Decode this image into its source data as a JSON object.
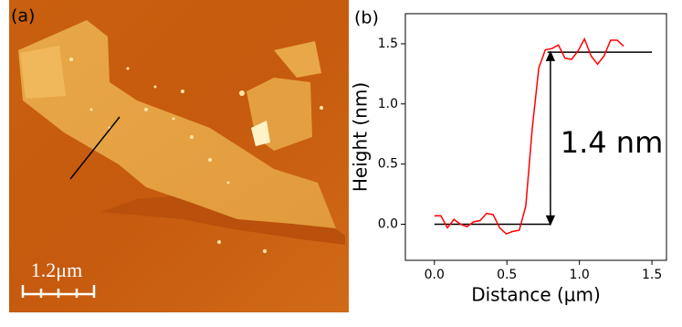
{
  "panel_a": {
    "label": "(a)",
    "scale_bar": "1.2μm"
  },
  "chart_data": {
    "type": "line",
    "label": "(b)",
    "x_label": "Distance (μm)",
    "y_label": "Height (nm)",
    "annotation": "1.4 nm",
    "x": [
      0,
      0.045,
      0.09,
      0.135,
      0.18,
      0.225,
      0.27,
      0.315,
      0.36,
      0.405,
      0.45,
      0.495,
      0.54,
      0.585,
      0.63,
      0.675,
      0.72,
      0.765,
      0.81,
      0.855,
      0.9,
      0.945,
      0.99,
      1.035,
      1.08,
      1.125,
      1.17,
      1.215,
      1.26,
      1.305
    ],
    "values": [
      0.07,
      0.07,
      -0.03,
      0.04,
      0.0,
      -0.02,
      0.02,
      0.03,
      0.09,
      0.08,
      -0.03,
      -0.08,
      -0.06,
      -0.05,
      0.15,
      0.8,
      1.3,
      1.45,
      1.46,
      1.49,
      1.38,
      1.37,
      1.44,
      1.54,
      1.4,
      1.33,
      1.4,
      1.53,
      1.53,
      1.48
    ],
    "color": "#ff0000",
    "reference_lines": [
      {
        "x": [
          0,
          0.8
        ],
        "y": 0
      },
      {
        "x": [
          0.78,
          1.5
        ],
        "y": 1.43
      }
    ],
    "arrow": {
      "x": 0.8,
      "y": [
        0,
        1.43
      ]
    },
    "xlim": [
      -0.2,
      1.6
    ],
    "ylim": [
      -0.3,
      1.75
    ],
    "xticks": [
      {
        "value": 0,
        "label": "0.0"
      },
      {
        "value": 0.5,
        "label": "0.5"
      },
      {
        "value": 1,
        "label": "1.0"
      },
      {
        "value": 1.5,
        "label": "1.5"
      }
    ],
    "yticks": [
      {
        "value": 0,
        "label": "0.0"
      },
      {
        "value": 0.5,
        "label": "0.5"
      },
      {
        "value": 1,
        "label": "1.0"
      },
      {
        "value": 1.5,
        "label": "1.5"
      }
    ]
  }
}
